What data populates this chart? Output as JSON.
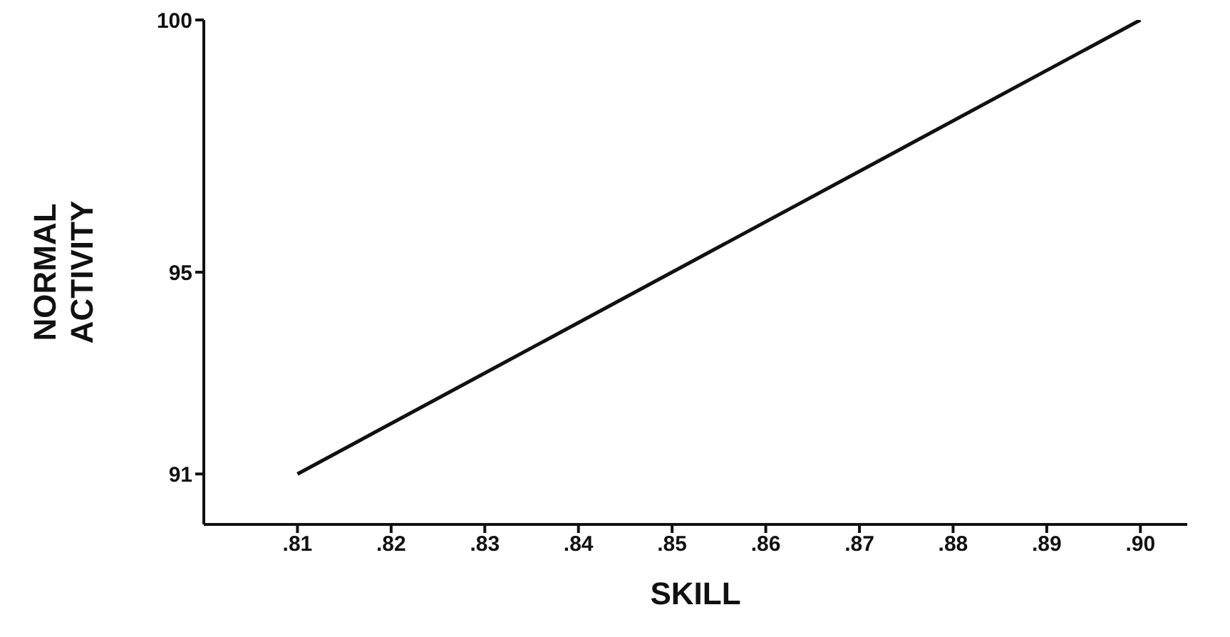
{
  "chart_data": {
    "type": "line",
    "xlabel": "SKILL",
    "ylabel": "NORMAL ACTIVITY",
    "x": [
      0.81,
      0.9
    ],
    "series": [
      {
        "color": "#111111",
        "values": [
          91,
          100
        ]
      }
    ],
    "xlim": [
      0.8,
      0.905
    ],
    "xticks": [
      {
        "value": 0.81,
        "label": ".81"
      },
      {
        "value": 0.82,
        "label": ".82"
      },
      {
        "value": 0.83,
        "label": ".83"
      },
      {
        "value": 0.84,
        "label": ".84"
      },
      {
        "value": 0.85,
        "label": ".85"
      },
      {
        "value": 0.86,
        "label": ".86"
      },
      {
        "value": 0.87,
        "label": ".87"
      },
      {
        "value": 0.88,
        "label": ".88"
      },
      {
        "value": 0.89,
        "label": ".89"
      },
      {
        "value": 0.9,
        "label": ".90"
      }
    ],
    "ylim": [
      90,
      100
    ],
    "yticks": [
      91,
      95,
      100
    ],
    "grid": false,
    "legend": false,
    "marker": "none",
    "line_style": "solid"
  }
}
